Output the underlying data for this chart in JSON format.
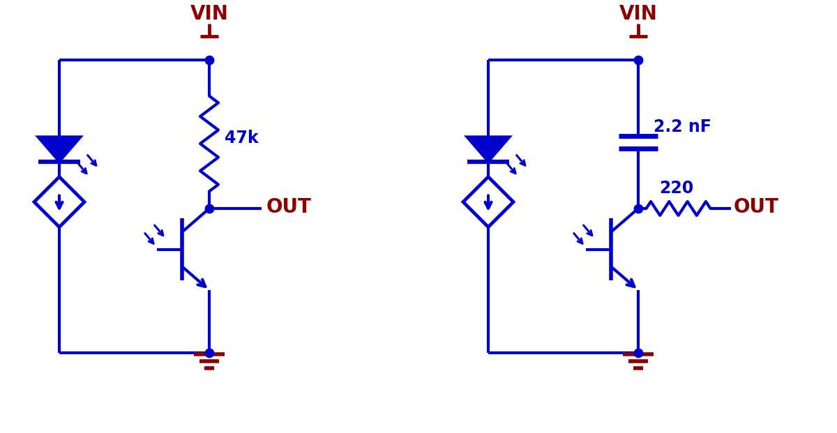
{
  "blue": "#0000CC",
  "dark_red": "#8B0000",
  "black": "#000000",
  "bg": "#FFFFFF",
  "lw": 3.0,
  "lw_thick": 3.5,
  "circuit1": {
    "vin_label": "VIN",
    "out_label": "OUT",
    "resistor_label": "47k"
  },
  "circuit2": {
    "vin_label": "VIN",
    "out_label": "OUT",
    "cap_label": "2.2 nF",
    "resistor_label": "220"
  }
}
